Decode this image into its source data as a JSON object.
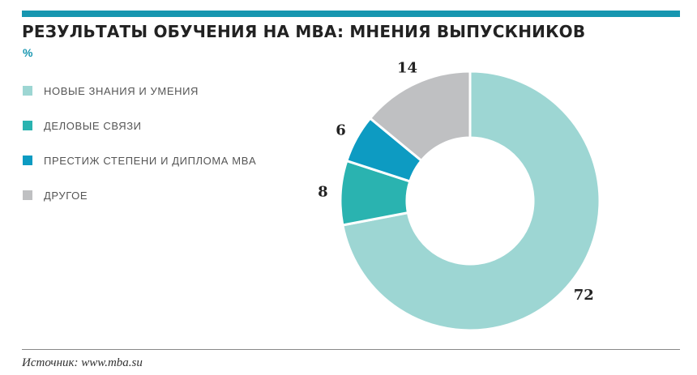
{
  "header": {
    "title": "РЕЗУЛЬТАТЫ ОБУЧЕНИЯ НА MBA: МНЕНИЯ ВЫПУСКНИКОВ",
    "unit": "%"
  },
  "legend": {
    "items": [
      {
        "label": "НОВЫЕ ЗНАНИЯ И УМЕНИЯ",
        "color": "#9dd6d3"
      },
      {
        "label": "ДЕЛОВЫЕ СВЯЗИ",
        "color": "#2ab3b0"
      },
      {
        "label": "ПРЕСТИЖ СТЕПЕНИ И ДИПЛОМА MBA",
        "color": "#0d9bc2"
      },
      {
        "label": "ДРУГОЕ",
        "color": "#bfc0c2"
      }
    ]
  },
  "chart_data": {
    "type": "pie",
    "style": "donut",
    "categories": [
      "НОВЫЕ ЗНАНИЯ И УМЕНИЯ",
      "ДЕЛОВЫЕ СВЯЗИ",
      "ПРЕСТИЖ СТЕПЕНИ И ДИПЛОМА MBA",
      "ДРУГОЕ"
    ],
    "values": [
      72,
      8,
      6,
      14
    ],
    "data_labels": [
      "72",
      "8",
      "6",
      "14"
    ],
    "colors": [
      "#9dd6d3",
      "#2ab3b0",
      "#0d9bc2",
      "#bfc0c2"
    ],
    "title": "РЕЗУЛЬТАТЫ ОБУЧЕНИЯ НА MBA: МНЕНИЯ ВЫПУСКНИКОВ",
    "unit": "%",
    "legend": "left"
  },
  "footer": {
    "source": "Источник:  www.mba.su"
  }
}
